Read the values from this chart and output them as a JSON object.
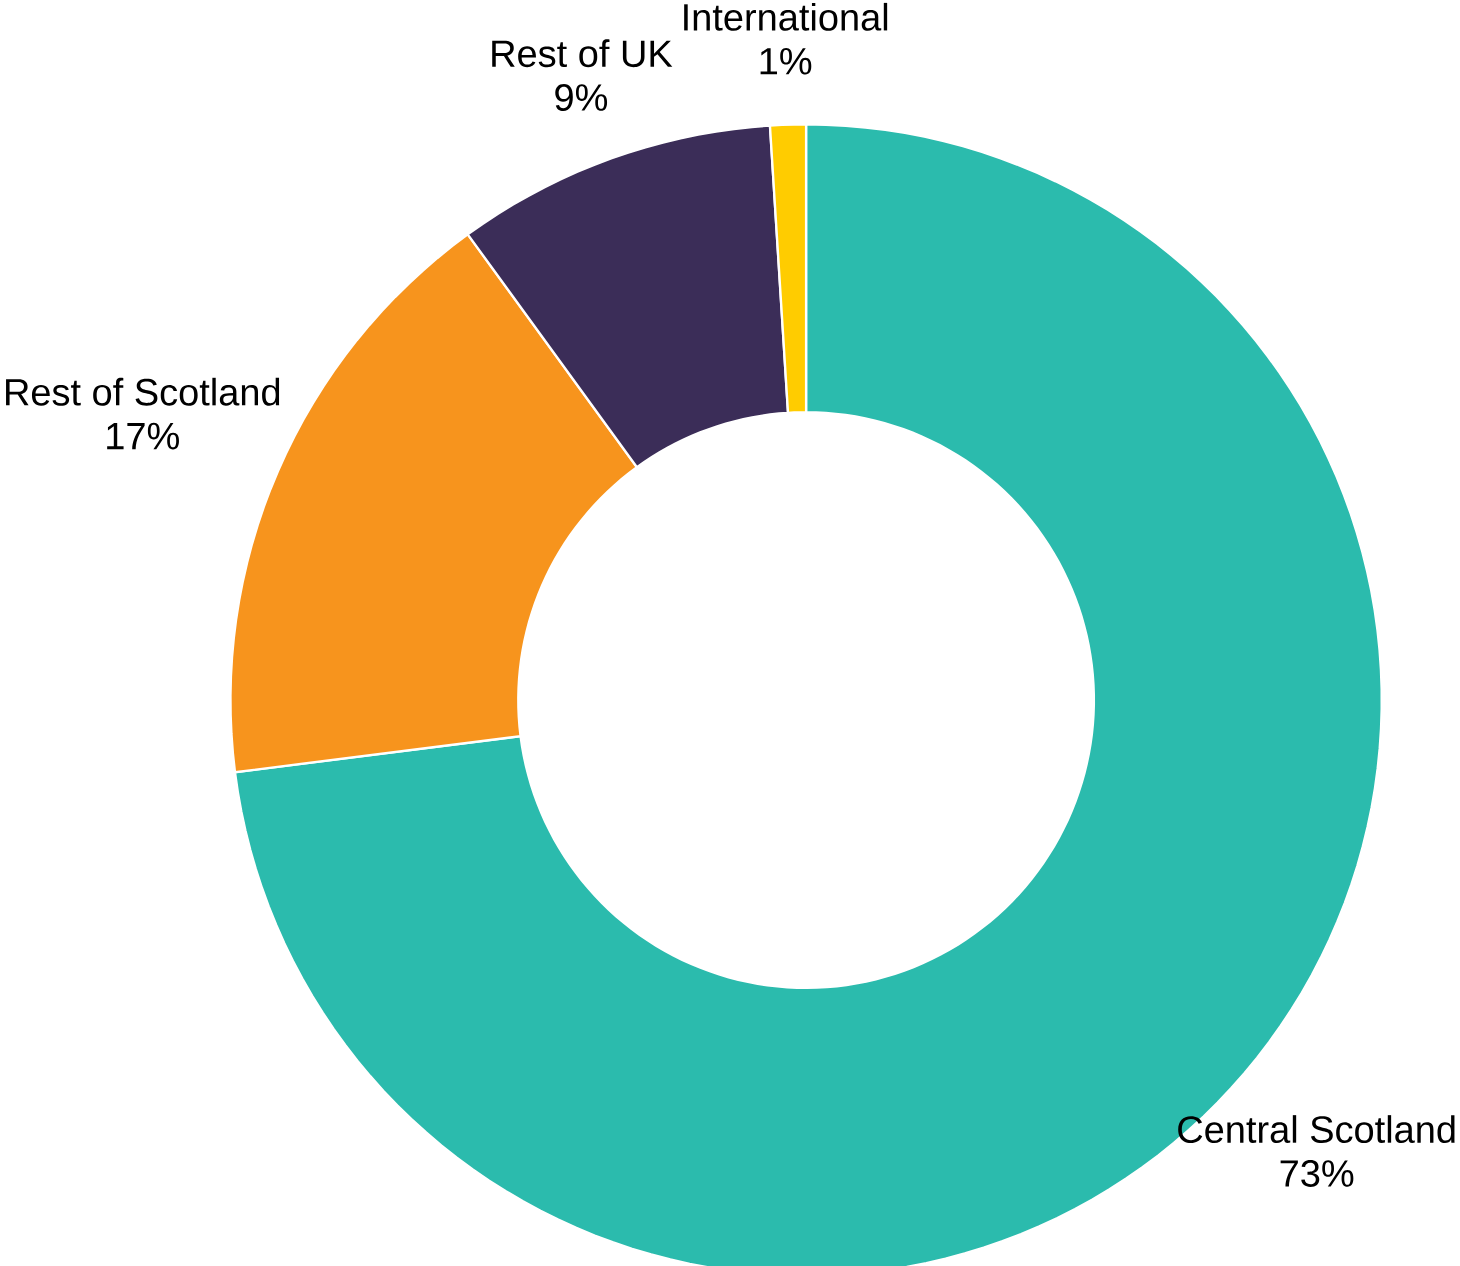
{
  "chart_data": {
    "type": "donut",
    "categories": [
      "Central Scotland",
      "Rest of Scotland",
      "Rest of UK",
      "International"
    ],
    "values": [
      73,
      17,
      9,
      1
    ],
    "colors": [
      "#2bbbad",
      "#f7941d",
      "#3b2d58",
      "#ffcc00"
    ],
    "value_labels": [
      "73%",
      "17%",
      "9%",
      "1%"
    ]
  }
}
